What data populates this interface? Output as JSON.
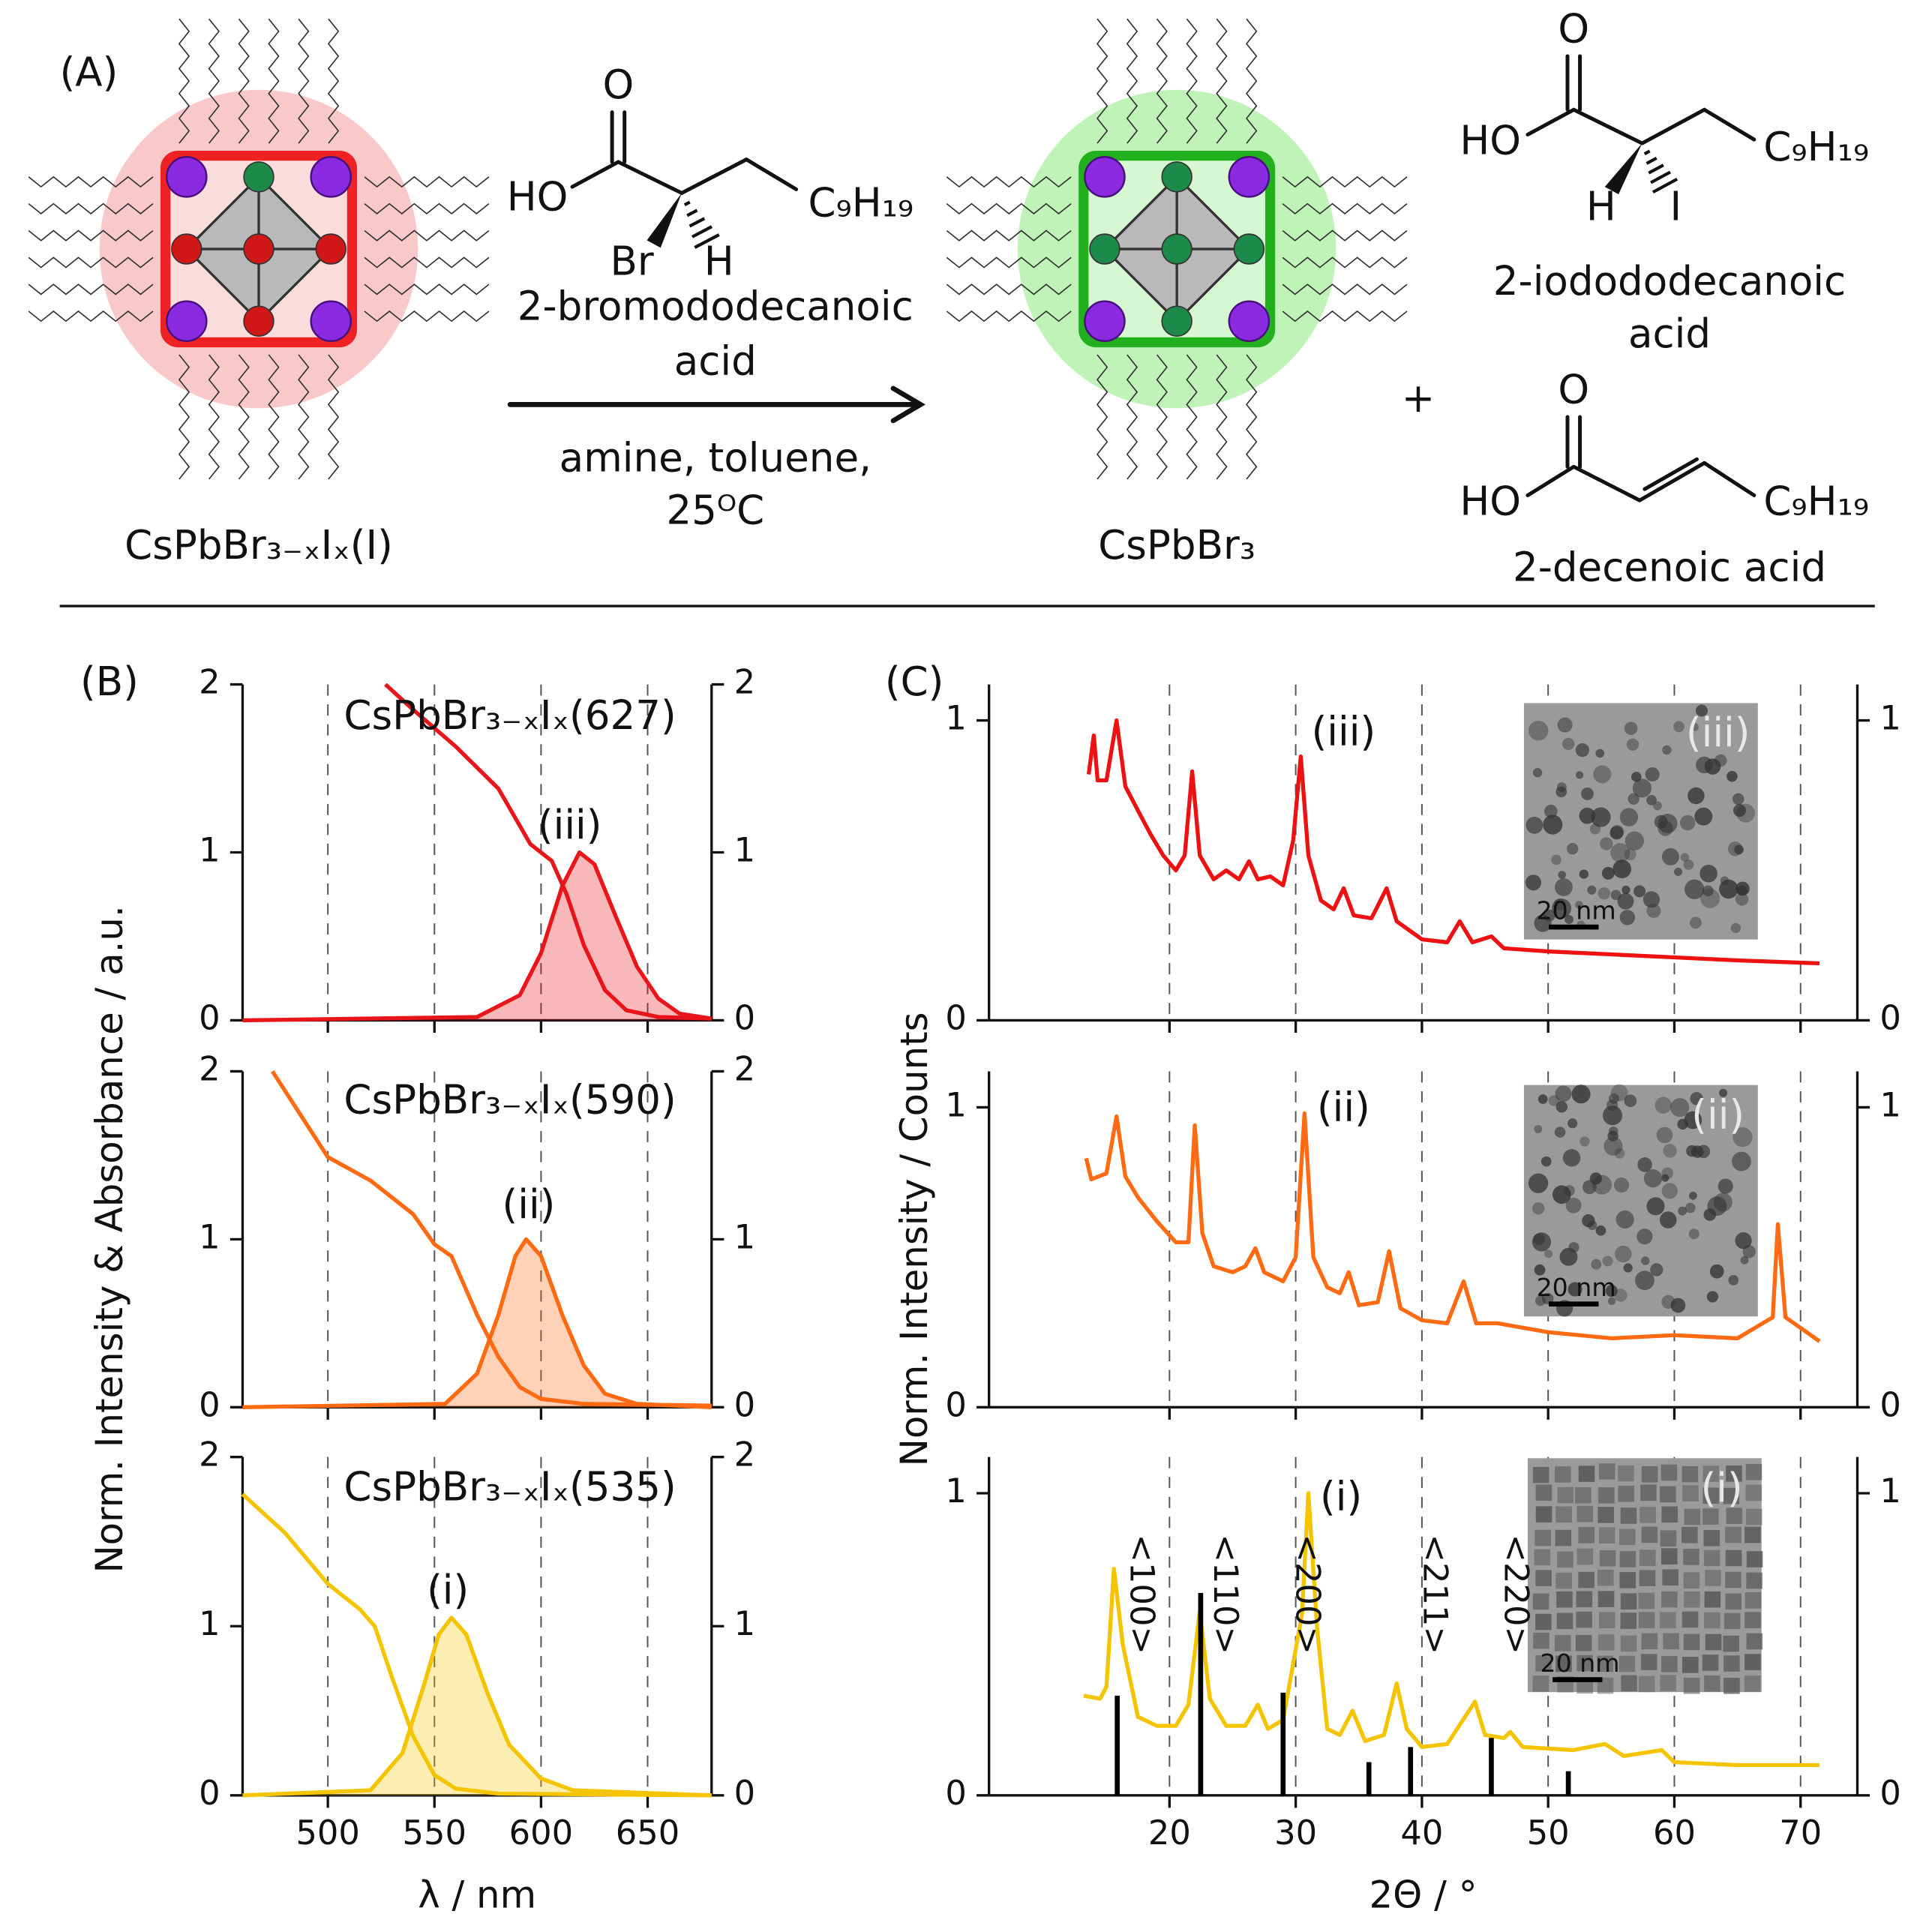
{
  "scheme": {
    "label": "(A)",
    "reactant": "CsPbBr₃₋ₓIₓ(I)",
    "product": "CsPbBr₃",
    "reagent": {
      "O": "O",
      "HO": "HO",
      "chain": "C₉H₁₉",
      "Br": "Br",
      "H": "H",
      "name": [
        "2-bromododecanoic",
        "acid"
      ],
      "conditions": [
        "amine, toluene,",
        "25ᴼC"
      ]
    },
    "plus": "+",
    "byproducts": [
      {
        "O": "O",
        "HO": "HO",
        "chain": "C₉H₁₉",
        "H": "H",
        "I": "I",
        "name": [
          "2-iodododecanoic",
          "acid"
        ]
      },
      {
        "O": "O",
        "HO": "HO",
        "chain": "C₉H₁₉",
        "name": [
          "2-decenoic acid"
        ]
      }
    ]
  },
  "chart_data": [
    {
      "type": "line",
      "panel_label": "(B)",
      "title": "CsPbBr₃₋ₓIₓ(627)",
      "annotation": "(iii)",
      "xlim": [
        460,
        680
      ],
      "xticks": [
        500,
        550,
        600,
        650
      ],
      "show_xtick_labels": false,
      "ylim": [
        0,
        2
      ],
      "yticks": [
        0,
        1,
        2
      ],
      "y2lim": [
        0,
        2
      ],
      "y2ticks": [
        0,
        1,
        2
      ],
      "grid": true,
      "series": [
        {
          "color": "#e8151b",
          "x": [
            527,
            540,
            560,
            580,
            595,
            605,
            612,
            620,
            630,
            640,
            655,
            680
          ],
          "values": [
            2.0,
            1.85,
            1.63,
            1.38,
            1.05,
            0.95,
            0.75,
            0.45,
            0.18,
            0.06,
            0.02,
            0.01
          ]
        },
        {
          "color": "#e8151b",
          "fill": true,
          "x": [
            460,
            570,
            590,
            600,
            610,
            618,
            625,
            635,
            645,
            655,
            665,
            680
          ],
          "values": [
            0,
            0.02,
            0.15,
            0.4,
            0.8,
            1.0,
            0.93,
            0.62,
            0.32,
            0.13,
            0.04,
            0.01
          ]
        }
      ]
    },
    {
      "type": "line",
      "title": "CsPbBr₃₋ₓIₓ(590)",
      "annotation": "(ii)",
      "ylabel": "Norm. Intensity & Absorbance / a.u.",
      "xlim": [
        460,
        680
      ],
      "xticks": [
        500,
        550,
        600,
        650
      ],
      "show_xtick_labels": false,
      "ylim": [
        0,
        2
      ],
      "yticks": [
        0,
        1,
        2
      ],
      "y2lim": [
        0,
        2
      ],
      "y2ticks": [
        0,
        1,
        2
      ],
      "grid": true,
      "series": [
        {
          "color": "#ff6a13",
          "x": [
            474,
            500,
            520,
            540,
            550,
            558,
            570,
            580,
            590,
            600,
            620,
            680
          ],
          "values": [
            2.0,
            1.49,
            1.35,
            1.15,
            0.97,
            0.9,
            0.55,
            0.3,
            0.12,
            0.05,
            0.02,
            0.01
          ]
        },
        {
          "color": "#ff6a13",
          "fill": true,
          "x": [
            460,
            555,
            570,
            580,
            588,
            593,
            600,
            610,
            620,
            630,
            645,
            680
          ],
          "values": [
            0,
            0.02,
            0.2,
            0.55,
            0.9,
            1.0,
            0.9,
            0.55,
            0.25,
            0.08,
            0.02,
            0
          ]
        }
      ]
    },
    {
      "type": "line",
      "title": "CsPbBr₃₋ₓIₓ(535)",
      "annotation": "(i)",
      "xlabel": "λ / nm",
      "xlim": [
        460,
        680
      ],
      "xticks": [
        500,
        550,
        600,
        650
      ],
      "show_xtick_labels": true,
      "ylim": [
        0,
        2
      ],
      "yticks": [
        0,
        1,
        2
      ],
      "y2lim": [
        0,
        2
      ],
      "y2ticks": [
        0,
        1,
        2
      ],
      "grid": true,
      "series": [
        {
          "color": "#f5c400",
          "x": [
            460,
            480,
            500,
            515,
            522,
            530,
            540,
            550,
            560,
            580,
            680
          ],
          "values": [
            1.78,
            1.55,
            1.25,
            1.1,
            1.0,
            0.7,
            0.35,
            0.12,
            0.04,
            0.01,
            0
          ]
        },
        {
          "color": "#f5c400",
          "fill": true,
          "x": [
            460,
            520,
            535,
            545,
            552,
            558,
            565,
            575,
            585,
            600,
            615,
            680
          ],
          "values": [
            0,
            0.03,
            0.25,
            0.65,
            0.95,
            1.05,
            0.95,
            0.6,
            0.3,
            0.1,
            0.03,
            0
          ]
        }
      ]
    },
    {
      "type": "line",
      "panel_label": "(C)",
      "annotation": "(iii)",
      "inset": {
        "label": "(iii)",
        "scale_bar": "20 nm"
      },
      "xlim": [
        5.7,
        74.5
      ],
      "xticks": [
        20,
        30,
        40,
        50,
        60,
        70
      ],
      "show_xtick_labels": false,
      "ylim": [
        0,
        1.12
      ],
      "yticks": [
        0,
        1
      ],
      "y2lim": [
        0,
        1.12
      ],
      "y2ticks": [
        0,
        1
      ],
      "grid": true,
      "series": [
        {
          "color": "#ee1111",
          "x": [
            13.6,
            14.0,
            14.3,
            15.0,
            15.8,
            16.5,
            17.5,
            18.5,
            19.5,
            20.5,
            21.2,
            21.8,
            22.4,
            23.5,
            24.5,
            25.5,
            26.3,
            27.0,
            28.0,
            29.0,
            29.8,
            30.4,
            31.0,
            32.0,
            33.0,
            33.8,
            34.6,
            36.0,
            37.2,
            38.0,
            40,
            42,
            43,
            44,
            45.5,
            46.5,
            50,
            55,
            60,
            65,
            71.5
          ],
          "values": [
            0.82,
            0.95,
            0.8,
            0.8,
            1.0,
            0.78,
            0.7,
            0.62,
            0.55,
            0.5,
            0.55,
            0.83,
            0.55,
            0.47,
            0.5,
            0.47,
            0.53,
            0.47,
            0.48,
            0.45,
            0.6,
            0.88,
            0.55,
            0.4,
            0.37,
            0.44,
            0.35,
            0.34,
            0.44,
            0.33,
            0.27,
            0.26,
            0.33,
            0.26,
            0.28,
            0.24,
            0.23,
            0.22,
            0.21,
            0.2,
            0.19
          ]
        }
      ]
    },
    {
      "type": "line",
      "annotation": "(ii)",
      "ylabel": "Norm. Intensity / Counts",
      "inset": {
        "label": "(ii)",
        "scale_bar": "20 nm"
      },
      "xlim": [
        5.7,
        74.5
      ],
      "xticks": [
        20,
        30,
        40,
        50,
        60,
        70
      ],
      "show_xtick_labels": false,
      "ylim": [
        0,
        1.12
      ],
      "yticks": [
        0,
        1
      ],
      "y2lim": [
        0,
        1.12
      ],
      "y2ticks": [
        0,
        1
      ],
      "grid": true,
      "series": [
        {
          "color": "#ff6a13",
          "x": [
            13.4,
            13.8,
            15.0,
            15.8,
            16.5,
            17.5,
            19,
            20.5,
            21.5,
            22.0,
            22.6,
            23.5,
            25,
            26,
            26.8,
            27.5,
            29,
            30,
            30.7,
            31.4,
            32.5,
            33.5,
            34.2,
            35,
            36.5,
            37.4,
            38.3,
            40,
            42,
            43.3,
            44.3,
            46,
            50,
            55,
            60,
            65,
            67.8,
            68.2,
            68.8,
            71.5
          ],
          "values": [
            0.83,
            0.76,
            0.78,
            0.97,
            0.77,
            0.7,
            0.62,
            0.55,
            0.55,
            0.94,
            0.58,
            0.47,
            0.45,
            0.47,
            0.53,
            0.45,
            0.42,
            0.5,
            0.98,
            0.5,
            0.4,
            0.38,
            0.45,
            0.34,
            0.35,
            0.52,
            0.33,
            0.29,
            0.28,
            0.42,
            0.28,
            0.28,
            0.25,
            0.23,
            0.24,
            0.23,
            0.3,
            0.61,
            0.3,
            0.22
          ]
        }
      ]
    },
    {
      "type": "line",
      "annotation": "(i)",
      "xlabel": "2Θ / °",
      "inset": {
        "label": "(i)",
        "scale_bar": "20 nm"
      },
      "xlim": [
        5.7,
        74.5
      ],
      "xticks": [
        20,
        30,
        40,
        50,
        60,
        70
      ],
      "show_xtick_labels": true,
      "ylim": [
        0,
        1.12
      ],
      "yticks": [
        0,
        1
      ],
      "y2lim": [
        0,
        1.12
      ],
      "y2ticks": [
        0,
        1
      ],
      "grid": true,
      "series": [
        {
          "color": "#f5c400",
          "x": [
            13.2,
            14.5,
            15.0,
            15.6,
            16.3,
            17.5,
            19,
            20.5,
            21.5,
            22.4,
            23.2,
            24.5,
            26,
            27,
            27.8,
            29,
            30.5,
            31.0,
            31.7,
            32.5,
            33.5,
            34.5,
            35.5,
            37,
            38,
            38.8,
            40,
            42,
            44.2,
            45,
            46.5,
            47,
            48,
            52,
            54.5,
            56,
            59,
            60,
            65,
            71.5
          ],
          "values": [
            0.33,
            0.32,
            0.36,
            0.75,
            0.5,
            0.26,
            0.23,
            0.23,
            0.3,
            0.61,
            0.32,
            0.23,
            0.23,
            0.3,
            0.22,
            0.25,
            0.6,
            1.0,
            0.55,
            0.22,
            0.2,
            0.28,
            0.18,
            0.2,
            0.37,
            0.22,
            0.16,
            0.17,
            0.31,
            0.2,
            0.19,
            0.21,
            0.16,
            0.15,
            0.17,
            0.13,
            0.15,
            0.11,
            0.1,
            0.1
          ]
        },
        {
          "type": "stick",
          "color": "#000000",
          "x": [
            15.86,
            22.47,
            29.0,
            35.8,
            39.1,
            45.5,
            51.6
          ],
          "values": [
            0.33,
            0.67,
            0.34,
            0.11,
            0.16,
            0.19,
            0.08
          ],
          "labels": [
            "<100>",
            "<110>",
            "<200>",
            null,
            "<211>",
            "<220>",
            null
          ]
        }
      ]
    }
  ]
}
